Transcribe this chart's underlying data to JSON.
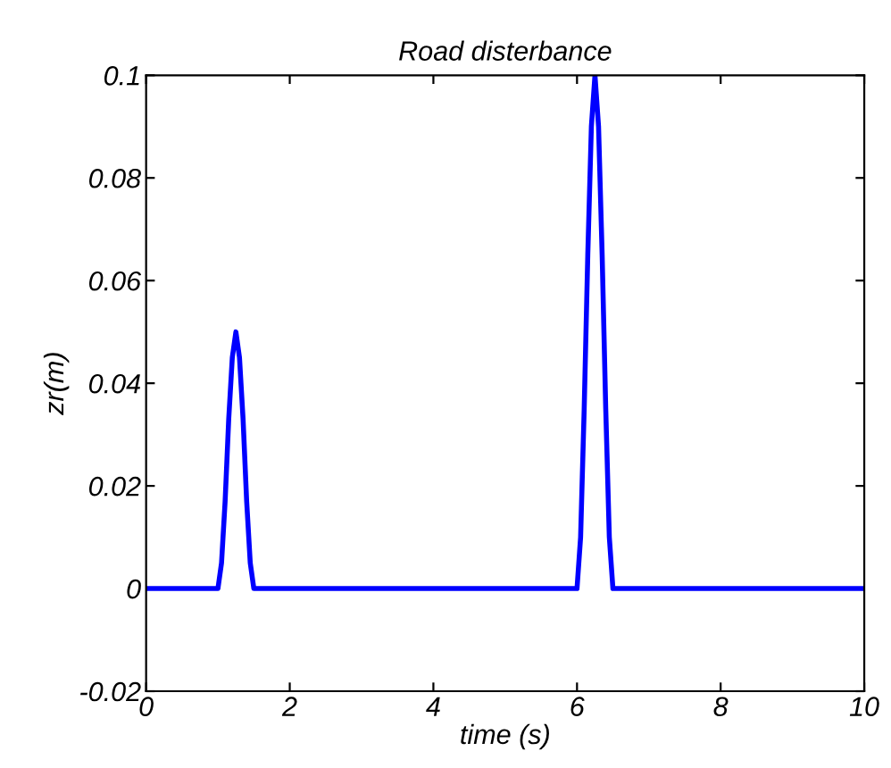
{
  "chart_data": {
    "type": "line",
    "title": "Road disterbance",
    "xlabel": "time (s)",
    "ylabel": "zr(m)",
    "series": [
      {
        "color": "#0000ff",
        "x": [
          0,
          1,
          1.05,
          1.1,
          1.15,
          1.2,
          1.25,
          1.3,
          1.35,
          1.4,
          1.45,
          1.5,
          6,
          6.05,
          6.1,
          6.15,
          6.2,
          6.25,
          6.3,
          6.35,
          6.4,
          6.45,
          6.5,
          10
        ],
        "values": [
          0,
          0,
          0.005,
          0.017,
          0.033,
          0.045,
          0.05,
          0.045,
          0.033,
          0.017,
          0.005,
          0,
          0,
          0.01,
          0.035,
          0.065,
          0.09,
          0.1,
          0.09,
          0.065,
          0.035,
          0.01,
          0,
          0
        ]
      }
    ],
    "xlim": [
      0,
      10
    ],
    "ylim": [
      -0.02,
      0.1
    ],
    "xticks": [
      0,
      2,
      4,
      6,
      8,
      10
    ],
    "yticks": [
      -0.02,
      0,
      0.02,
      0.04,
      0.06,
      0.08,
      0.1
    ],
    "grid": false,
    "legend": false,
    "marker": "none",
    "line_style": "solid"
  }
}
